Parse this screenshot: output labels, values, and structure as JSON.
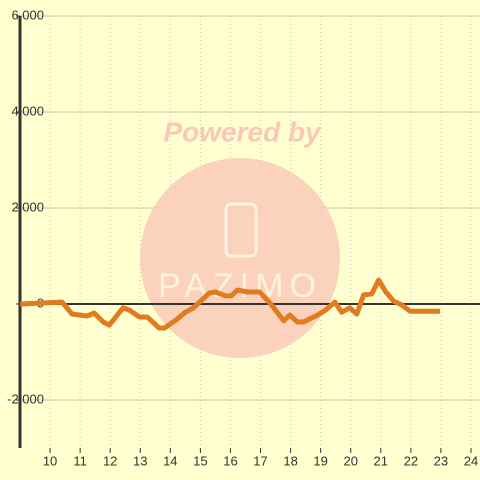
{
  "chart_data": {
    "type": "line",
    "watermark": "Powered by",
    "watermark_logo": "PAZIMO",
    "x": [
      9.0,
      10.4,
      10.73,
      11.23,
      11.47,
      11.77,
      11.97,
      12.43,
      12.63,
      12.97,
      13.23,
      13.63,
      13.8,
      14.2,
      14.5,
      14.77,
      15.3,
      15.5,
      15.83,
      16.03,
      16.23,
      16.57,
      16.97,
      17.37,
      17.77,
      17.97,
      18.23,
      18.43,
      18.9,
      19.17,
      19.47,
      19.7,
      19.97,
      20.2,
      20.43,
      20.7,
      20.93,
      21.17,
      21.43,
      21.7,
      21.97,
      22.97
    ],
    "series": [
      {
        "color": "#e07b20",
        "values": [
          0,
          40,
          -210,
          -250,
          -190,
          -375,
          -440,
          -80,
          -125,
          -270,
          -270,
          -500,
          -500,
          -330,
          -170,
          -80,
          230,
          250,
          170,
          170,
          290,
          250,
          250,
          -20,
          -350,
          -230,
          -375,
          -375,
          -230,
          -125,
          40,
          -170,
          -80,
          -210,
          190,
          210,
          500,
          250,
          60,
          -20,
          -150,
          -150
        ]
      }
    ],
    "xlim": [
      9,
      24.3
    ],
    "xticks": [
      10,
      11,
      12,
      13,
      14,
      15,
      16,
      17,
      18,
      19,
      20,
      21,
      22,
      23,
      24
    ],
    "ylim": [
      -3000,
      6000
    ],
    "yticks": [
      {
        "value": -2000,
        "label": "-2,000"
      },
      0,
      {
        "value": 2000,
        "label": "2,000"
      },
      {
        "value": 4000,
        "label": "4,000"
      },
      {
        "value": 6000,
        "label": "6,000"
      }
    ],
    "grid": true
  }
}
